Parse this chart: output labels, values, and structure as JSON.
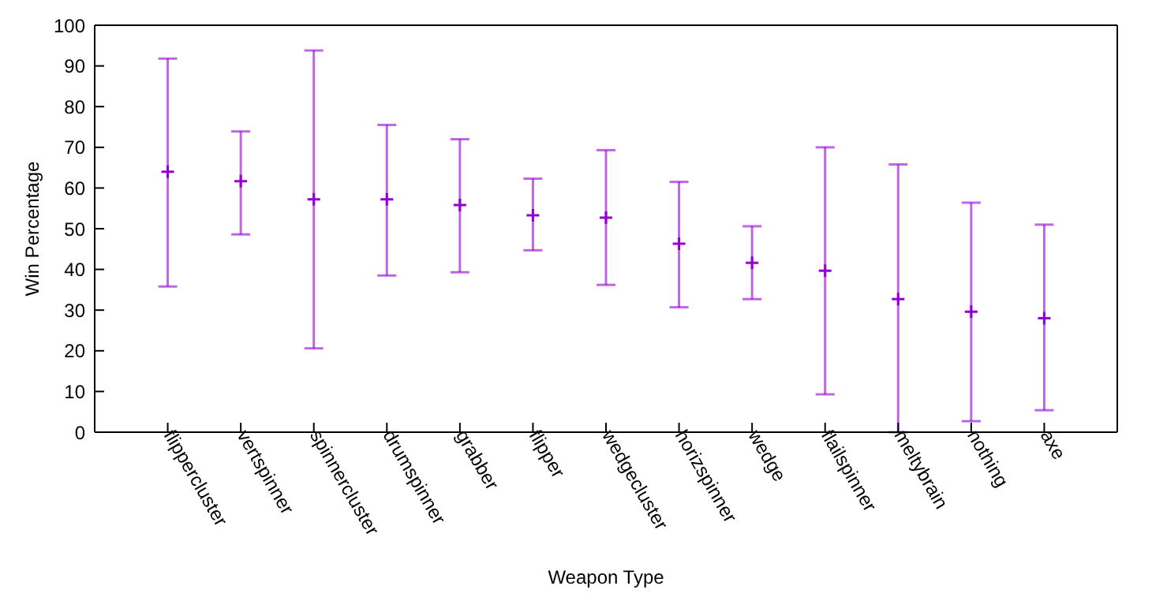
{
  "chart_data": {
    "type": "scatter",
    "xlabel": "Weapon Type",
    "ylabel": "Win Percentage",
    "categories": [
      "flippercluster",
      "vertspinner",
      "spinnercluster",
      "drumspinner",
      "grabber",
      "flipper",
      "wedgecluster",
      "horizspinner",
      "wedge",
      "flailspinner",
      "meltybrain",
      "nothing",
      "axe"
    ],
    "values": [
      64,
      61.7,
      57.2,
      57.2,
      55.8,
      53.3,
      52.7,
      46.3,
      41.6,
      39.7,
      32.7,
      29.6,
      28
    ],
    "errors": [
      [
        35.8,
        91.8
      ],
      [
        48.6,
        73.9
      ],
      [
        20.6,
        93.8
      ],
      [
        38.5,
        75.5
      ],
      [
        39.3,
        72
      ],
      [
        44.7,
        62.3
      ],
      [
        36.2,
        69.3
      ],
      [
        30.7,
        61.5
      ],
      [
        32.7,
        50.6
      ],
      [
        9.3,
        70
      ],
      [
        0,
        65.8
      ],
      [
        2.7,
        56.4
      ],
      [
        5.4,
        51
      ]
    ],
    "color": "#9400d3",
    "marker": "cross",
    "ylim": [
      0,
      100
    ],
    "yticks": [
      0,
      10,
      20,
      30,
      40,
      50,
      60,
      70,
      80,
      90,
      100
    ]
  }
}
